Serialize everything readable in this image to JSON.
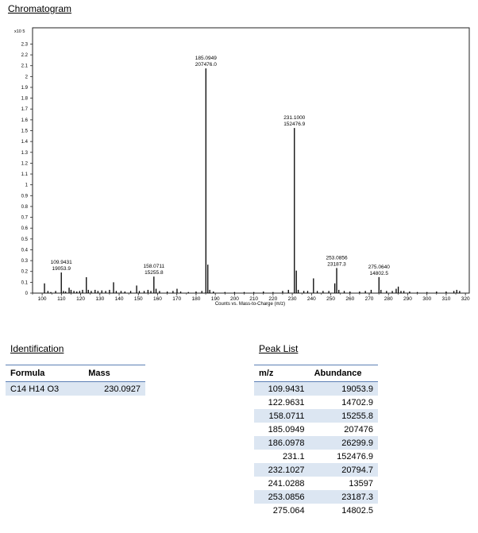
{
  "chart_title": "Chromatogram",
  "chart_data": {
    "type": "bar",
    "title": "",
    "xlabel": "Counts vs. Mass-to-Charge (m/z)",
    "ylabel": "",
    "y_multiplier": "x10 5",
    "xlim": [
      95,
      322
    ],
    "ylim": [
      0,
      2.45
    ],
    "x_ticks": [
      100,
      110,
      120,
      130,
      140,
      150,
      160,
      170,
      180,
      190,
      200,
      210,
      220,
      230,
      240,
      250,
      260,
      270,
      280,
      290,
      300,
      310,
      320
    ],
    "y_ticks": [
      0,
      0.1,
      0.2,
      0.3,
      0.4,
      0.5,
      0.6,
      0.7,
      0.8,
      0.9,
      1,
      1.1,
      1.2,
      1.3,
      1.4,
      1.5,
      1.6,
      1.7,
      1.8,
      1.9,
      2,
      2.1,
      2.2,
      2.3
    ],
    "peaks": [
      {
        "x": 101.2,
        "y": 0.09
      },
      {
        "x": 103,
        "y": 0.02
      },
      {
        "x": 104.5,
        "y": 0.01
      },
      {
        "x": 107,
        "y": 0.02
      },
      {
        "x": 109.9431,
        "y": 0.190539
      },
      {
        "x": 111.1,
        "y": 0.02
      },
      {
        "x": 112.2,
        "y": 0.015
      },
      {
        "x": 114,
        "y": 0.05
      },
      {
        "x": 115,
        "y": 0.03
      },
      {
        "x": 116.5,
        "y": 0.02
      },
      {
        "x": 118,
        "y": 0.015
      },
      {
        "x": 119.5,
        "y": 0.02
      },
      {
        "x": 121,
        "y": 0.03
      },
      {
        "x": 122.9631,
        "y": 0.147029
      },
      {
        "x": 124,
        "y": 0.03
      },
      {
        "x": 125.5,
        "y": 0.02
      },
      {
        "x": 127.5,
        "y": 0.03
      },
      {
        "x": 129,
        "y": 0.02
      },
      {
        "x": 131,
        "y": 0.025
      },
      {
        "x": 133,
        "y": 0.02
      },
      {
        "x": 135,
        "y": 0.03
      },
      {
        "x": 137.1,
        "y": 0.1
      },
      {
        "x": 138.5,
        "y": 0.02
      },
      {
        "x": 141,
        "y": 0.02
      },
      {
        "x": 143,
        "y": 0.015
      },
      {
        "x": 146,
        "y": 0.02
      },
      {
        "x": 149.1,
        "y": 0.07
      },
      {
        "x": 150.5,
        "y": 0.02
      },
      {
        "x": 153,
        "y": 0.02
      },
      {
        "x": 155,
        "y": 0.03
      },
      {
        "x": 156.5,
        "y": 0.02
      },
      {
        "x": 158.0711,
        "y": 0.152558
      },
      {
        "x": 159.2,
        "y": 0.04
      },
      {
        "x": 161,
        "y": 0.02
      },
      {
        "x": 165,
        "y": 0.015
      },
      {
        "x": 168,
        "y": 0.02
      },
      {
        "x": 170.1,
        "y": 0.04
      },
      {
        "x": 172,
        "y": 0.015
      },
      {
        "x": 176,
        "y": 0.01
      },
      {
        "x": 180,
        "y": 0.015
      },
      {
        "x": 183,
        "y": 0.02
      },
      {
        "x": 185.0949,
        "y": 2.07476
      },
      {
        "x": 186.0978,
        "y": 0.262999
      },
      {
        "x": 187.1,
        "y": 0.03
      },
      {
        "x": 189,
        "y": 0.015
      },
      {
        "x": 195,
        "y": 0.01
      },
      {
        "x": 200,
        "y": 0.01
      },
      {
        "x": 205,
        "y": 0.01
      },
      {
        "x": 210,
        "y": 0.01
      },
      {
        "x": 215,
        "y": 0.015
      },
      {
        "x": 220,
        "y": 0.01
      },
      {
        "x": 225,
        "y": 0.02
      },
      {
        "x": 228,
        "y": 0.03
      },
      {
        "x": 231.1,
        "y": 1.524769
      },
      {
        "x": 232.1027,
        "y": 0.207947
      },
      {
        "x": 233.1,
        "y": 0.03
      },
      {
        "x": 236,
        "y": 0.02
      },
      {
        "x": 238,
        "y": 0.02
      },
      {
        "x": 241.0288,
        "y": 0.13597
      },
      {
        "x": 243,
        "y": 0.02
      },
      {
        "x": 246,
        "y": 0.02
      },
      {
        "x": 249,
        "y": 0.02
      },
      {
        "x": 252.1,
        "y": 0.09
      },
      {
        "x": 253.0856,
        "y": 0.231873
      },
      {
        "x": 254.2,
        "y": 0.03
      },
      {
        "x": 257,
        "y": 0.02
      },
      {
        "x": 260,
        "y": 0.015
      },
      {
        "x": 265,
        "y": 0.015
      },
      {
        "x": 268,
        "y": 0.02
      },
      {
        "x": 271,
        "y": 0.03
      },
      {
        "x": 275.064,
        "y": 0.148025
      },
      {
        "x": 276.1,
        "y": 0.03
      },
      {
        "x": 279,
        "y": 0.02
      },
      {
        "x": 282,
        "y": 0.02
      },
      {
        "x": 284,
        "y": 0.04
      },
      {
        "x": 285.1,
        "y": 0.06
      },
      {
        "x": 286.5,
        "y": 0.02
      },
      {
        "x": 288,
        "y": 0.02
      },
      {
        "x": 291,
        "y": 0.015
      },
      {
        "x": 295,
        "y": 0.01
      },
      {
        "x": 300,
        "y": 0.01
      },
      {
        "x": 305,
        "y": 0.015
      },
      {
        "x": 310,
        "y": 0.015
      },
      {
        "x": 314,
        "y": 0.02
      },
      {
        "x": 315.5,
        "y": 0.03
      },
      {
        "x": 317,
        "y": 0.02
      }
    ],
    "annotations": [
      {
        "x": 109.9431,
        "y": 0.190539,
        "line1": "109.9431",
        "line2": "19053.9"
      },
      {
        "x": 158.0711,
        "y": 0.152558,
        "line1": "158.0711",
        "line2": "15255.8"
      },
      {
        "x": 185.0949,
        "y": 2.07476,
        "line1": "185.0949",
        "line2": "207476.0"
      },
      {
        "x": 231.1,
        "y": 1.524769,
        "line1": "231.1000",
        "line2": "152476.9"
      },
      {
        "x": 253.0856,
        "y": 0.231873,
        "line1": "253.0856",
        "line2": "23187.3"
      },
      {
        "x": 275.064,
        "y": 0.148025,
        "line1": "275.0640",
        "line2": "14802.5"
      }
    ]
  },
  "identification": {
    "title": "Identification",
    "headers": [
      "Formula",
      "Mass"
    ],
    "rows": [
      [
        "C14 H14 O3",
        "230.0927"
      ]
    ]
  },
  "peak_list": {
    "title": "Peak List",
    "headers": [
      "m/z",
      "Abundance"
    ],
    "rows": [
      [
        "109.9431",
        "19053.9"
      ],
      [
        "122.9631",
        "14702.9"
      ],
      [
        "158.0711",
        "15255.8"
      ],
      [
        "185.0949",
        "207476"
      ],
      [
        "186.0978",
        "26299.9"
      ],
      [
        "231.1",
        "152476.9"
      ],
      [
        "232.1027",
        "20794.7"
      ],
      [
        "241.0288",
        "13597"
      ],
      [
        "253.0856",
        "23187.3"
      ],
      [
        "275.064",
        "14802.5"
      ]
    ]
  }
}
